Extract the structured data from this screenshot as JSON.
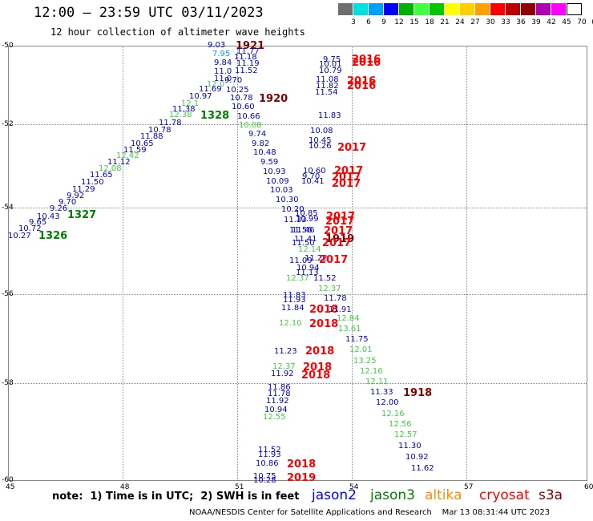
{
  "header": {
    "title": "12:00 – 23:59 UTC 03/11/2023",
    "subtitle": "12 hour collection of altimeter wave heights"
  },
  "scale": {
    "colors": [
      "#6e6e6e",
      "#00e0e0",
      "#00a0ff",
      "#0000ff",
      "#00b000",
      "#40ff40",
      "#00c800",
      "#ffff00",
      "#ffd000",
      "#ffa000",
      "#ff0000",
      "#c00000",
      "#900000",
      "#b000b0",
      "#ff00ff",
      "#ffffff"
    ],
    "labels": [
      "3",
      "6",
      "9",
      "12",
      "15",
      "18",
      "21",
      "24",
      "27",
      "30",
      "33",
      "36",
      "39",
      "42",
      "45",
      "70",
      "(ft)"
    ]
  },
  "axes": {
    "lat_labels": [
      "-50",
      "-52",
      "-54",
      "-56",
      "-58",
      "-60"
    ],
    "lon_labels": [
      "45",
      "48",
      "51",
      "54",
      "57",
      "60"
    ]
  },
  "legend": {
    "note": "note:  1) Time is in UTC;  2) SWH is in feet",
    "satellites": [
      {
        "name": "jason2",
        "color": "#0000ff"
      },
      {
        "name": "jason3",
        "color": "#008000"
      },
      {
        "name": "altika",
        "color": "#ff8c00"
      },
      {
        "name": "cryosat",
        "color": "#ff0000"
      },
      {
        "name": "s3a",
        "color": "#800000"
      }
    ]
  },
  "footer": "NOAA/NESDIS Center for Satellite Applications and Research    Mar 13 08:31:44 UTC 2023",
  "track_a": {
    "values": [
      {
        "v": "9.03",
        "c": "#0000cc"
      },
      {
        "v": "7.95",
        "c": "#00a0ff"
      },
      {
        "v": "9.84",
        "c": "#0000cc"
      },
      {
        "v": "11.0",
        "c": "#0000cc"
      },
      {
        "v": "11.0",
        "c": "#0000cc"
      },
      {
        "v": "12.0",
        "c": "#40d040"
      },
      {
        "v": "11.69",
        "c": "#0000cc"
      },
      {
        "v": "10.97",
        "c": "#0000cc"
      },
      {
        "v": "12.1",
        "c": "#40d040"
      },
      {
        "v": "11.38",
        "c": "#0000cc"
      },
      {
        "v": "12.38",
        "c": "#40d040"
      },
      {
        "v": "11.78",
        "c": "#0000cc"
      },
      {
        "v": "10.78",
        "c": "#0000cc"
      },
      {
        "v": "11.88",
        "c": "#0000cc"
      },
      {
        "v": "10.65",
        "c": "#0000cc"
      },
      {
        "v": "11.59",
        "c": "#0000cc"
      },
      {
        "v": "12.42",
        "c": "#40d040"
      },
      {
        "v": "11.12",
        "c": "#0000cc"
      },
      {
        "v": "12.08",
        "c": "#40d040"
      },
      {
        "v": "11.65",
        "c": "#0000cc"
      },
      {
        "v": "11.50",
        "c": "#0000cc"
      },
      {
        "v": "11.29",
        "c": "#0000cc"
      },
      {
        "v": "9.92",
        "c": "#0000cc"
      },
      {
        "v": "9.70",
        "c": "#0000cc"
      },
      {
        "v": "9.26",
        "c": "#0000cc"
      },
      {
        "v": "10.43",
        "c": "#0000cc"
      },
      {
        "v": "9.65",
        "c": "#0000cc"
      },
      {
        "v": "10.72",
        "c": "#0000cc"
      },
      {
        "v": "10.27",
        "c": "#0000cc"
      }
    ],
    "hours": [
      {
        "v": "1921",
        "c": "#800000"
      },
      {
        "v": "1328",
        "c": "#008000"
      },
      {
        "v": "1327",
        "c": "#008000"
      },
      {
        "v": "1326",
        "c": "#008000"
      }
    ]
  },
  "track_b": {
    "values": [
      {
        "v": "11.77",
        "c": "#0000cc"
      },
      {
        "v": "11.18",
        "c": "#0000cc"
      },
      {
        "v": "11.19",
        "c": "#0000cc"
      },
      {
        "v": "11.52",
        "c": "#0000cc"
      },
      {
        "v": "9.70",
        "c": "#0000cc"
      },
      {
        "v": "10.25",
        "c": "#0000cc"
      },
      {
        "v": "10.78",
        "c": "#0000cc"
      },
      {
        "v": "10.60",
        "c": "#0000cc"
      },
      {
        "v": "10.66",
        "c": "#0000cc"
      },
      {
        "v": "10.08",
        "c": "#40d040"
      },
      {
        "v": "9.74",
        "c": "#0000cc"
      },
      {
        "v": "9.82",
        "c": "#0000cc"
      },
      {
        "v": "10.48",
        "c": "#0000cc"
      },
      {
        "v": "9.59",
        "c": "#0000cc"
      },
      {
        "v": "10.93",
        "c": "#0000cc"
      },
      {
        "v": "10.09",
        "c": "#0000cc"
      },
      {
        "v": "10.03",
        "c": "#0000cc"
      },
      {
        "v": "10.30",
        "c": "#0000cc"
      },
      {
        "v": "10.20",
        "c": "#0000cc"
      },
      {
        "v": "11.33",
        "c": "#0000cc"
      },
      {
        "v": "11.56",
        "c": "#0000cc"
      },
      {
        "v": "11.41",
        "c": "#0000cc"
      },
      {
        "v": "11.50",
        "c": "#0000cc"
      },
      {
        "v": "12.14",
        "c": "#40d040"
      },
      {
        "v": "11.09",
        "c": "#0000cc"
      },
      {
        "v": "11.13",
        "c": "#0000cc"
      },
      {
        "v": "12.37",
        "c": "#40d040"
      },
      {
        "v": "11.83",
        "c": "#0000cc"
      },
      {
        "v": "11.93",
        "c": "#0000cc"
      },
      {
        "v": "11.84",
        "c": "#0000cc"
      },
      {
        "v": "12.10",
        "c": "#40d040"
      },
      {
        "v": "11.23",
        "c": "#0000cc"
      },
      {
        "v": "12.37",
        "c": "#40d040"
      },
      {
        "v": "11.92",
        "c": "#0000cc"
      },
      {
        "v": "11.86",
        "c": "#0000cc"
      },
      {
        "v": "11.78",
        "c": "#0000cc"
      },
      {
        "v": "11.92",
        "c": "#0000cc"
      },
      {
        "v": "10.94",
        "c": "#0000cc"
      },
      {
        "v": "12.55",
        "c": "#40d040"
      },
      {
        "v": "11.52",
        "c": "#0000cc"
      },
      {
        "v": "11.93",
        "c": "#0000cc"
      },
      {
        "v": "10.86",
        "c": "#0000cc"
      },
      {
        "v": "10.75",
        "c": "#0000cc"
      },
      {
        "v": "10.28",
        "c": "#0000cc"
      }
    ],
    "hours": [
      {
        "v": "1920",
        "c": "#800000"
      },
      {
        "v": "2018",
        "c": "#ff0000"
      },
      {
        "v": "2018",
        "c": "#ff0000"
      },
      {
        "v": "2018",
        "c": "#ff0000"
      },
      {
        "v": "2018",
        "c": "#ff0000"
      },
      {
        "v": "2018",
        "c": "#ff0000"
      },
      {
        "v": "2018",
        "c": "#ff0000"
      },
      {
        "v": "2019",
        "c": "#ff0000"
      }
    ]
  },
  "track_c": {
    "values": [
      {
        "v": "9.75",
        "c": "#0000cc"
      },
      {
        "v": "10.01",
        "c": "#0000cc"
      },
      {
        "v": "10.79",
        "c": "#0000cc"
      },
      {
        "v": "11.08",
        "c": "#0000cc"
      },
      {
        "v": "11.82",
        "c": "#0000cc"
      },
      {
        "v": "11.54",
        "c": "#0000cc"
      },
      {
        "v": "11.83",
        "c": "#0000cc"
      },
      {
        "v": "10.08",
        "c": "#0000cc"
      },
      {
        "v": "10.45",
        "c": "#0000cc"
      },
      {
        "v": "10.26",
        "c": "#0000cc"
      },
      {
        "v": "10.60",
        "c": "#0000cc"
      },
      {
        "v": "9.70",
        "c": "#0000cc"
      },
      {
        "v": "10.41",
        "c": "#0000cc"
      },
      {
        "v": "10.85",
        "c": "#0000cc"
      },
      {
        "v": "10.99",
        "c": "#0000cc"
      },
      {
        "v": "11.46",
        "c": "#0000cc"
      },
      {
        "v": "11.22",
        "c": "#0000cc"
      },
      {
        "v": "10.94",
        "c": "#0000cc"
      },
      {
        "v": "11.52",
        "c": "#0000cc"
      },
      {
        "v": "12.37",
        "c": "#40d040"
      },
      {
        "v": "11.78",
        "c": "#0000cc"
      },
      {
        "v": "11.91",
        "c": "#0000cc"
      },
      {
        "v": "12.84",
        "c": "#40d040"
      },
      {
        "v": "13.61",
        "c": "#40d040"
      },
      {
        "v": "11.75",
        "c": "#0000cc"
      },
      {
        "v": "12.01",
        "c": "#40d040"
      },
      {
        "v": "13.25",
        "c": "#40d040"
      },
      {
        "v": "12.16",
        "c": "#40d040"
      },
      {
        "v": "12.11",
        "c": "#40d040"
      },
      {
        "v": "11.33",
        "c": "#0000cc"
      },
      {
        "v": "12.00",
        "c": "#0000cc"
      },
      {
        "v": "12.16",
        "c": "#40d040"
      },
      {
        "v": "12.56",
        "c": "#40d040"
      },
      {
        "v": "12.57",
        "c": "#40d040"
      },
      {
        "v": "11.30",
        "c": "#0000cc"
      },
      {
        "v": "10.92",
        "c": "#0000cc"
      },
      {
        "v": "11.62",
        "c": "#0000cc"
      }
    ],
    "hours": [
      {
        "v": "2016",
        "c": "#ff0000"
      },
      {
        "v": "2016",
        "c": "#ff0000"
      },
      {
        "v": "2016",
        "c": "#ff0000"
      },
      {
        "v": "2016",
        "c": "#ff0000"
      },
      {
        "v": "2017",
        "c": "#ff0000"
      },
      {
        "v": "2017",
        "c": "#ff0000"
      },
      {
        "v": "2017",
        "c": "#ff0000"
      },
      {
        "v": "2017",
        "c": "#ff0000"
      },
      {
        "v": "2017",
        "c": "#ff0000"
      },
      {
        "v": "2017",
        "c": "#ff0000"
      },
      {
        "v": "2017",
        "c": "#ff0000"
      },
      {
        "v": "1919",
        "c": "#800000"
      },
      {
        "v": "2017",
        "c": "#ff0000"
      },
      {
        "v": "2017",
        "c": "#ff0000"
      },
      {
        "v": "1918",
        "c": "#800000"
      }
    ]
  }
}
